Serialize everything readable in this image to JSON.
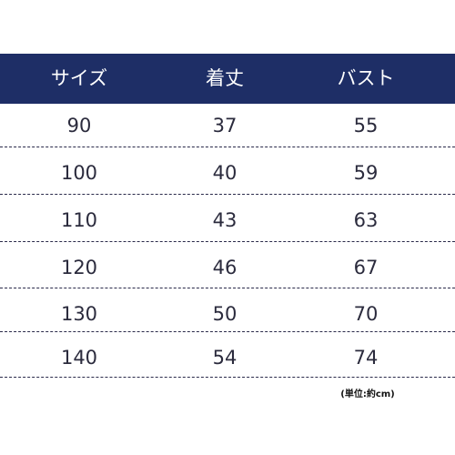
{
  "table": {
    "headers": [
      "サイズ",
      "着丈",
      "バスト"
    ],
    "rows": [
      [
        "90",
        "37",
        "55"
      ],
      [
        "100",
        "40",
        "59"
      ],
      [
        "110",
        "43",
        "63"
      ],
      [
        "120",
        "46",
        "67"
      ],
      [
        "130",
        "50",
        "70"
      ],
      [
        "140",
        "54",
        "74"
      ]
    ]
  },
  "unit_note": "(単位:約cm)",
  "colors": {
    "header_background": "#1e2e66",
    "header_text": "#ffffff",
    "body_text": "#2b2b3d",
    "dashed_rule": "#2a2a4a"
  }
}
